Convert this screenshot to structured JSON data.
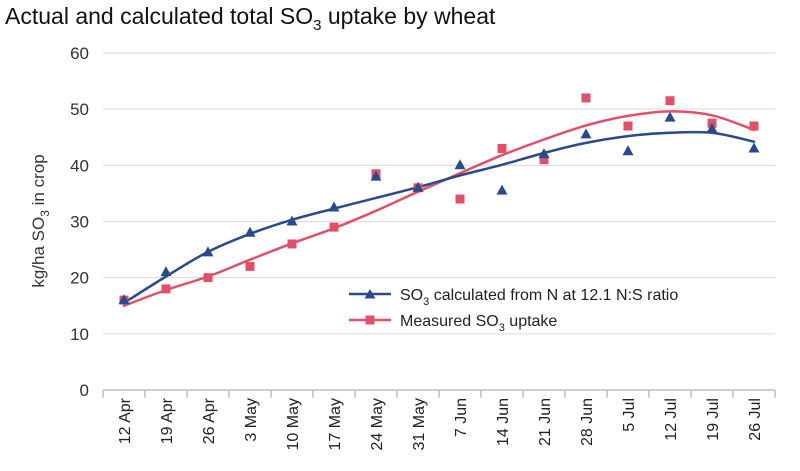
{
  "chart_data": {
    "type": "line",
    "title": {
      "text_before": "Actual and calculated total SO",
      "subscript": "3",
      "text_after": " uptake by wheat"
    },
    "ylabel": {
      "text_before": "kg/ha SO",
      "subscript": "3",
      "text_after": " in crop"
    },
    "xlabel": "",
    "ylim": [
      0,
      60
    ],
    "yticks": [
      0,
      10,
      20,
      30,
      40,
      50,
      60
    ],
    "categories": [
      "12 Apr",
      "19 Apr",
      "26 Apr",
      "3 May",
      "10 May",
      "17 May",
      "24 May",
      "31 May",
      "7 Jun",
      "14 Jun",
      "21 Jun",
      "28 Jun",
      "5 Jul",
      "12 Jul",
      "19 Jul",
      "26 Jul"
    ],
    "grid": "horizontal",
    "legend_position": "bottom-right",
    "series": [
      {
        "name": "calculated",
        "legend_before": "SO",
        "legend_subscript": "3",
        "legend_after": " calculated from N at 12.1 N:S ratio",
        "color": "#2b4a8b",
        "marker": "triangle",
        "values": [
          16,
          21,
          24.5,
          28,
          30,
          32.5,
          38,
          36,
          40,
          35.5,
          42,
          45.5,
          42.5,
          48.5,
          46.5,
          43
        ],
        "trend": [
          15.5,
          20.2,
          24.6,
          27.8,
          30.3,
          32.3,
          34.2,
          36.1,
          38.2,
          40.1,
          42.2,
          44,
          45.2,
          45.8,
          45.8,
          44.2
        ]
      },
      {
        "name": "measured",
        "legend_before": "Measured SO",
        "legend_subscript": "3",
        "legend_after": " uptake",
        "color": "#e0506a",
        "marker": "square",
        "values": [
          16,
          18,
          20,
          22,
          26,
          29,
          38.5,
          36,
          34,
          43,
          41,
          52,
          47,
          51.5,
          47.5,
          47
        ],
        "trend": [
          15,
          17.8,
          20.2,
          23.2,
          26.1,
          28.8,
          31.9,
          35.3,
          38.6,
          41.8,
          44.6,
          47.1,
          48.8,
          49.6,
          48.9,
          46.3
        ]
      }
    ]
  }
}
